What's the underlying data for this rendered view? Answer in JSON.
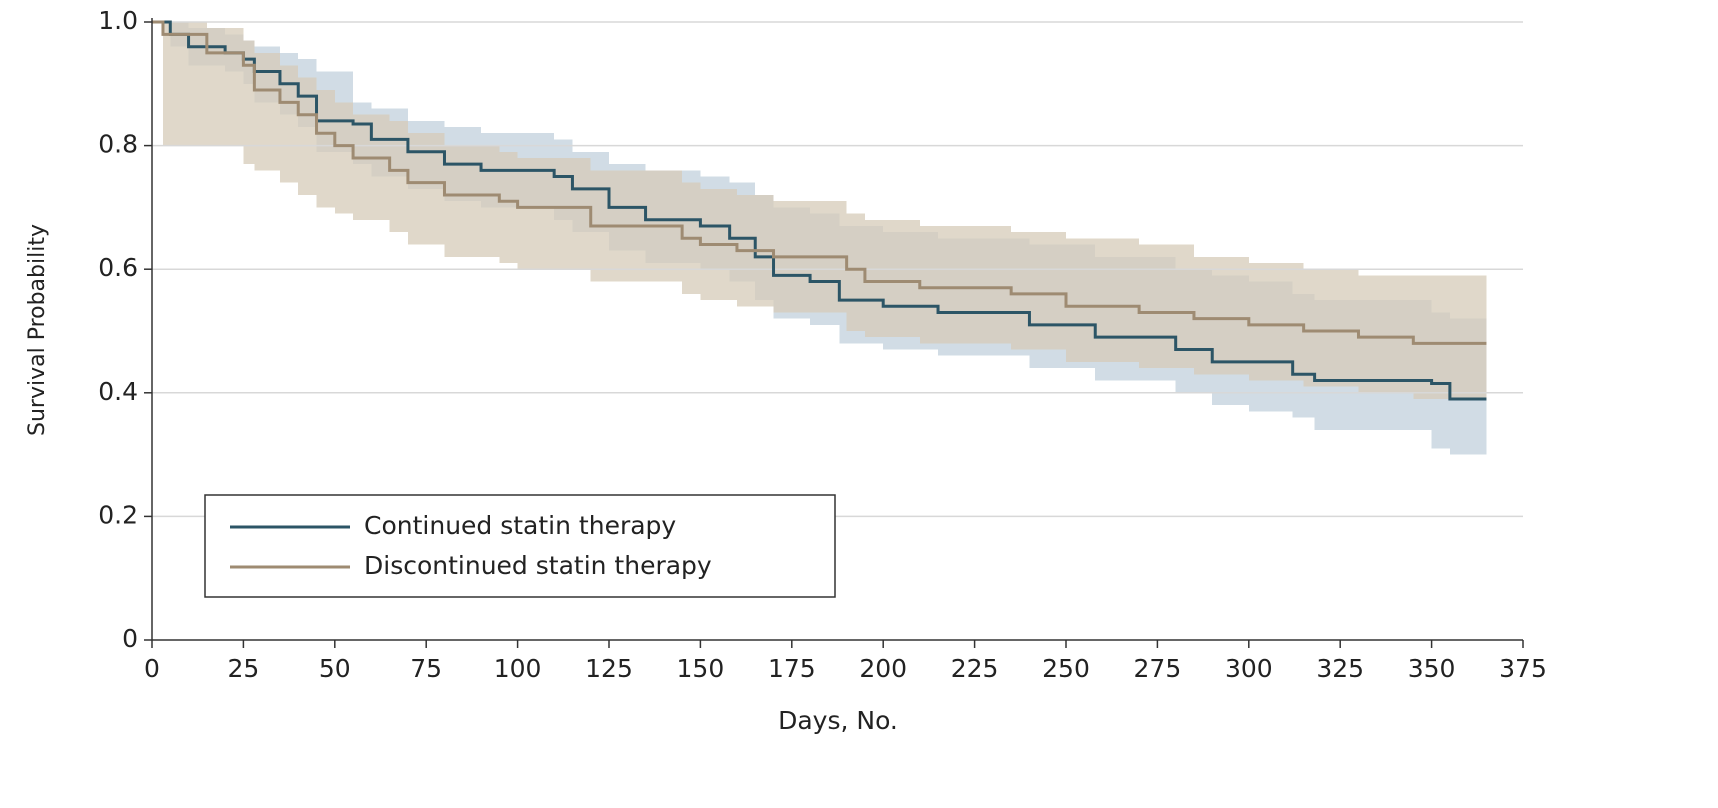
{
  "chart_data": {
    "type": "step",
    "xlabel": "Days, No.",
    "ylabel": "Survival Probability",
    "xlim": [
      0,
      375
    ],
    "ylim": [
      0,
      1
    ],
    "xticks": [
      0,
      25,
      50,
      75,
      100,
      125,
      150,
      175,
      200,
      225,
      250,
      275,
      300,
      325,
      350,
      375
    ],
    "yticks": [
      0,
      0.2,
      0.4,
      0.6,
      0.8,
      {
        "value": 1,
        "label": "1.0"
      }
    ],
    "grid": true,
    "legend": "lower left",
    "series": [
      {
        "name": "Continued statin therapy",
        "color": "#2c5566",
        "band_color": "#c9d6e1",
        "x": [
          0,
          5,
          10,
          20,
          25,
          28,
          35,
          40,
          45,
          55,
          60,
          70,
          80,
          90,
          110,
          115,
          125,
          135,
          150,
          158,
          165,
          170,
          180,
          188,
          200,
          215,
          240,
          258,
          280,
          290,
          300,
          312,
          318,
          350,
          355,
          365
        ],
        "values": [
          1.0,
          0.98,
          0.96,
          0.95,
          0.94,
          0.92,
          0.9,
          0.88,
          0.84,
          0.835,
          0.81,
          0.79,
          0.77,
          0.76,
          0.75,
          0.73,
          0.7,
          0.68,
          0.67,
          0.65,
          0.62,
          0.59,
          0.58,
          0.55,
          0.54,
          0.53,
          0.51,
          0.49,
          0.47,
          0.45,
          0.45,
          0.43,
          0.42,
          0.415,
          0.39,
          0.39
        ],
        "upper": [
          1.0,
          1.0,
          0.99,
          0.98,
          0.97,
          0.96,
          0.95,
          0.94,
          0.92,
          0.87,
          0.86,
          0.84,
          0.83,
          0.82,
          0.81,
          0.79,
          0.77,
          0.76,
          0.75,
          0.74,
          0.72,
          0.7,
          0.69,
          0.67,
          0.66,
          0.65,
          0.64,
          0.62,
          0.6,
          0.59,
          0.58,
          0.56,
          0.55,
          0.53,
          0.52,
          null
        ],
        "lower": [
          1.0,
          0.96,
          0.93,
          0.92,
          0.9,
          0.87,
          0.85,
          0.83,
          0.79,
          0.77,
          0.75,
          0.73,
          0.71,
          0.7,
          0.68,
          0.66,
          0.63,
          0.61,
          0.6,
          0.58,
          0.55,
          0.52,
          0.51,
          0.48,
          0.47,
          0.46,
          0.44,
          0.42,
          0.4,
          0.38,
          0.37,
          0.36,
          0.34,
          0.31,
          0.3,
          null
        ]
      },
      {
        "name": "Discontinued statin therapy",
        "color": "#9e8b72",
        "band_color": "#d6cbb8",
        "x": [
          0,
          3,
          15,
          25,
          28,
          35,
          40,
          45,
          50,
          55,
          65,
          70,
          80,
          95,
          100,
          120,
          145,
          150,
          160,
          170,
          190,
          195,
          210,
          235,
          250,
          270,
          285,
          300,
          315,
          330,
          345,
          365
        ],
        "values": [
          1.0,
          0.98,
          0.95,
          0.93,
          0.89,
          0.87,
          0.85,
          0.82,
          0.8,
          0.78,
          0.76,
          0.74,
          0.72,
          0.71,
          0.7,
          0.67,
          0.65,
          0.64,
          0.63,
          0.62,
          0.6,
          0.58,
          0.57,
          0.56,
          0.54,
          0.53,
          0.52,
          0.51,
          0.5,
          0.49,
          0.48,
          0.48
        ],
        "upper": [
          null,
          1.0,
          0.99,
          0.97,
          0.95,
          0.93,
          0.91,
          0.89,
          0.87,
          0.85,
          0.84,
          0.82,
          0.8,
          0.79,
          0.78,
          0.76,
          0.74,
          0.73,
          0.72,
          0.71,
          0.69,
          0.68,
          0.67,
          0.66,
          0.65,
          0.64,
          0.62,
          0.61,
          0.6,
          0.59,
          0.59,
          null
        ],
        "lower": [
          null,
          0.8,
          0.8,
          0.77,
          0.76,
          0.74,
          0.72,
          0.7,
          0.69,
          0.68,
          0.66,
          0.64,
          0.62,
          0.61,
          0.6,
          0.58,
          0.56,
          0.55,
          0.54,
          0.53,
          0.5,
          0.49,
          0.48,
          0.47,
          0.45,
          0.44,
          0.43,
          0.42,
          0.41,
          0.4,
          0.39,
          null
        ]
      }
    ]
  }
}
